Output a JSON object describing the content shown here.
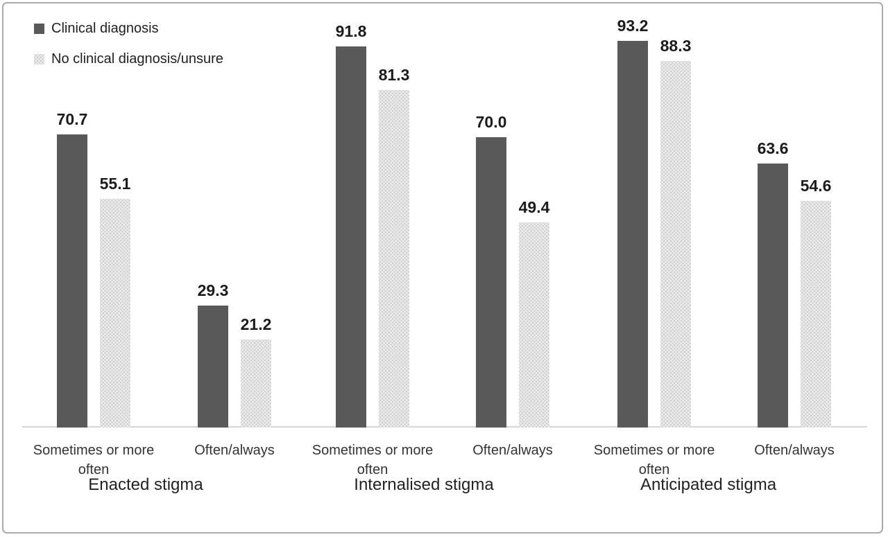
{
  "chart_data": {
    "type": "bar",
    "legend_position": "top-left",
    "grid": false,
    "value_labels_shown": true,
    "ylim": [
      0,
      100
    ],
    "series": [
      {
        "name": "Clinical diagnosis",
        "color": "#595959",
        "style": "solid"
      },
      {
        "name": "No clinical diagnosis/unsure",
        "color": "#ebebeb",
        "style": "dotted-pattern",
        "dot_color": "#c9c9c9"
      }
    ],
    "groups": [
      {
        "label": "Enacted stigma",
        "clusters": [
          {
            "category": "Sometimes or more often",
            "values": [
              70.7,
              55.1
            ],
            "value_labels": [
              "70.7",
              "55.1"
            ]
          },
          {
            "category": "Often/always",
            "values": [
              29.3,
              21.2
            ],
            "value_labels": [
              "29.3",
              "21.2"
            ]
          }
        ]
      },
      {
        "label": "Internalised stigma",
        "clusters": [
          {
            "category": "Sometimes or more often",
            "values": [
              91.8,
              81.3
            ],
            "value_labels": [
              "91.8",
              "81.3"
            ]
          },
          {
            "category": "Often/always",
            "values": [
              70.0,
              49.4
            ],
            "value_labels": [
              "70.0",
              "49.4"
            ]
          }
        ]
      },
      {
        "label": "Anticipated stigma",
        "clusters": [
          {
            "category": "Sometimes or more often",
            "values": [
              93.2,
              88.3
            ],
            "value_labels": [
              "93.2",
              "88.3"
            ]
          },
          {
            "category": "Often/always",
            "values": [
              63.6,
              54.6
            ],
            "value_labels": [
              "63.6",
              "54.6"
            ]
          }
        ]
      }
    ]
  }
}
